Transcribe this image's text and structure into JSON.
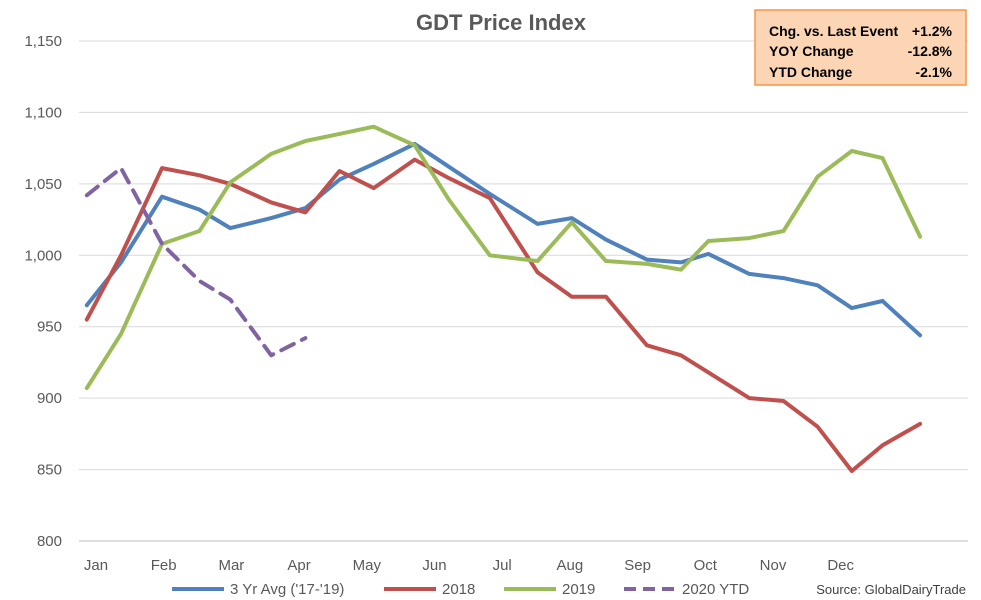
{
  "chart_data": {
    "type": "line",
    "title": "GDT Price Index",
    "xlabel": "",
    "ylabel": "",
    "ylim": [
      800,
      1150
    ],
    "yticks": [
      "1,150",
      "1,100",
      "1,050",
      "1,000",
      "950",
      "900",
      "850",
      "800"
    ],
    "month_labels": [
      "Jan",
      "Feb",
      "Mar",
      "Apr",
      "May",
      "Jun",
      "Jul",
      "Aug",
      "Sep",
      "Oct",
      "Nov",
      "Dec"
    ],
    "grid": true,
    "legend_position": "bottom",
    "series": [
      {
        "name": "3 Yr Avg ('17-'19)",
        "color": "#4f81bd",
        "style": "solid",
        "x": [
          0.1,
          0.6,
          1.2,
          1.75,
          2.2,
          2.8,
          3.3,
          3.8,
          4.3,
          4.9,
          5.4,
          6.0,
          6.7,
          7.2,
          7.7,
          8.3,
          8.8,
          9.2,
          9.8,
          10.3,
          10.8,
          11.3,
          11.75
        ],
        "values": [
          965,
          995,
          1041,
          1032,
          1019,
          1026,
          1033,
          1053,
          1064,
          1078,
          1062,
          1043,
          1022,
          1026,
          1011,
          997,
          995,
          1001,
          987,
          984,
          979,
          963,
          968
        ]
      },
      {
        "name": "",
        "color": "#4f81bd",
        "style": "solid",
        "x": [
          11.75,
          12.3
        ],
        "values": [
          968,
          944
        ]
      },
      {
        "name": "2018",
        "color": "#c0504d",
        "style": "solid",
        "x": [
          0.1,
          0.6,
          1.2,
          1.75,
          2.2,
          2.8,
          3.3,
          3.8,
          4.3,
          4.9,
          5.4,
          6.0,
          6.7,
          7.2,
          7.7,
          8.3,
          8.8,
          9.2,
          9.8,
          10.3,
          10.8,
          11.3,
          11.75,
          12.3
        ],
        "values": [
          955,
          1000,
          1061,
          1056,
          1050,
          1037,
          1030,
          1059,
          1047,
          1067,
          1054,
          1040,
          988,
          971,
          971,
          937,
          930,
          918,
          900,
          898,
          880,
          849,
          867,
          882
        ]
      },
      {
        "name": "2019",
        "color": "#9bbb59",
        "style": "solid",
        "x": [
          0.1,
          0.6,
          1.2,
          1.75,
          2.2,
          2.8,
          3.3,
          3.8,
          4.3,
          4.9,
          5.4,
          6.0,
          6.7,
          7.2,
          7.7,
          8.3,
          8.8,
          9.2,
          9.8,
          10.3,
          10.8,
          11.3,
          11.75,
          12.3
        ],
        "values": [
          907,
          945,
          1008,
          1017,
          1051,
          1071,
          1080,
          1085,
          1090,
          1077,
          1039,
          1000,
          996,
          1023,
          996,
          994,
          990,
          1010,
          1012,
          1017,
          1055,
          1073,
          1068,
          1013
        ]
      },
      {
        "name": "2020 YTD",
        "color": "#8064a2",
        "style": "dashed",
        "x": [
          0.1,
          0.6,
          1.2,
          1.75,
          2.2,
          2.8,
          3.3
        ],
        "values": [
          1042,
          1061,
          1008,
          982,
          969,
          930,
          942
        ]
      }
    ],
    "annotations": {
      "rows": [
        {
          "label": "Chg. vs. Last Event",
          "value": "+1.2%"
        },
        {
          "label": "YOY Change",
          "value": "-12.8%"
        },
        {
          "label": "YTD Change",
          "value": "-2.1%"
        }
      ],
      "box_fill": "#fcd5b5",
      "box_border": "#f79646"
    },
    "source": "Source: GlobalDairyTrade"
  }
}
